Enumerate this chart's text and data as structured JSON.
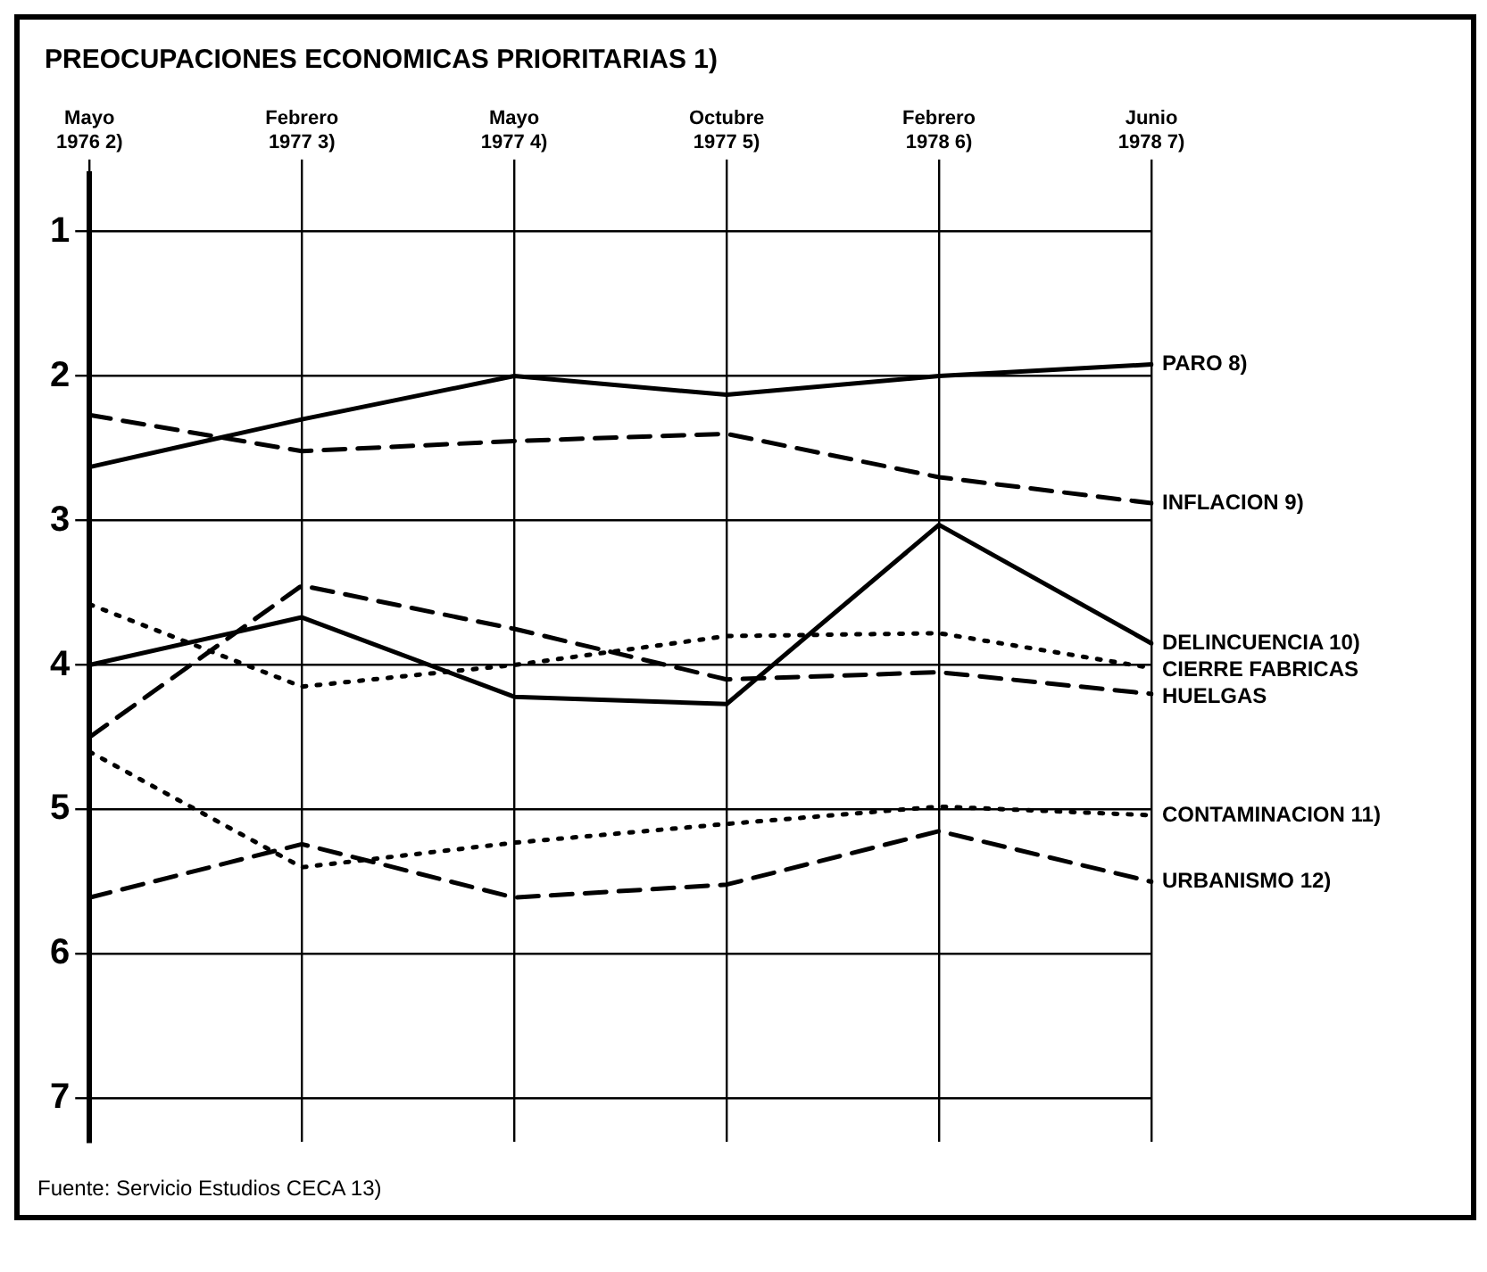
{
  "chart_data": {
    "type": "line",
    "title": "PREOCUPACIONES ECONOMICAS PRIORITARIAS 1)",
    "categories": [
      "Mayo 1976 2)",
      "Febrero 1977 3)",
      "Mayo 1977 4)",
      "Octubre 1977 5)",
      "Febrero 1978 6)",
      "Junio 1978 7)"
    ],
    "series": [
      {
        "name": "PARO 8)",
        "color": "#000000",
        "line_style": "solid",
        "values": [
          2.63,
          2.3,
          2.0,
          2.13,
          2.0,
          1.92
        ]
      },
      {
        "name": "INFLACION 9)",
        "color": "#000000",
        "line_style": "dashed",
        "values": [
          2.27,
          2.52,
          2.45,
          2.4,
          2.7,
          2.88
        ]
      },
      {
        "name": "DELINCUENCIA 10)",
        "color": "#000000",
        "line_style": "solid",
        "values": [
          4.0,
          3.67,
          4.22,
          4.27,
          3.03,
          3.85
        ]
      },
      {
        "name": "CIERRE FABRICAS",
        "color": "#000000",
        "line_style": "dotted",
        "values": [
          3.58,
          4.15,
          4.0,
          3.8,
          3.78,
          4.02
        ]
      },
      {
        "name": "HUELGAS",
        "color": "#000000",
        "line_style": "dashed",
        "values": [
          4.5,
          3.45,
          3.75,
          4.1,
          4.05,
          4.2
        ]
      },
      {
        "name": "CONTAMINACION 11)",
        "color": "#000000",
        "line_style": "dotted",
        "values": [
          4.6,
          5.4,
          5.23,
          5.1,
          4.98,
          5.04
        ]
      },
      {
        "name": "URBANISMO 12)",
        "color": "#000000",
        "line_style": "dashed",
        "values": [
          5.61,
          5.24,
          5.61,
          5.52,
          5.15,
          5.5
        ]
      }
    ],
    "ylim": [
      7.3,
      0.6
    ],
    "yticks": [
      1,
      2,
      3,
      4,
      5,
      6,
      7
    ],
    "grid": true,
    "legend": false,
    "marker": "none",
    "annotations": [
      "Fuente: Servicio Estudios CECA 13)"
    ]
  }
}
